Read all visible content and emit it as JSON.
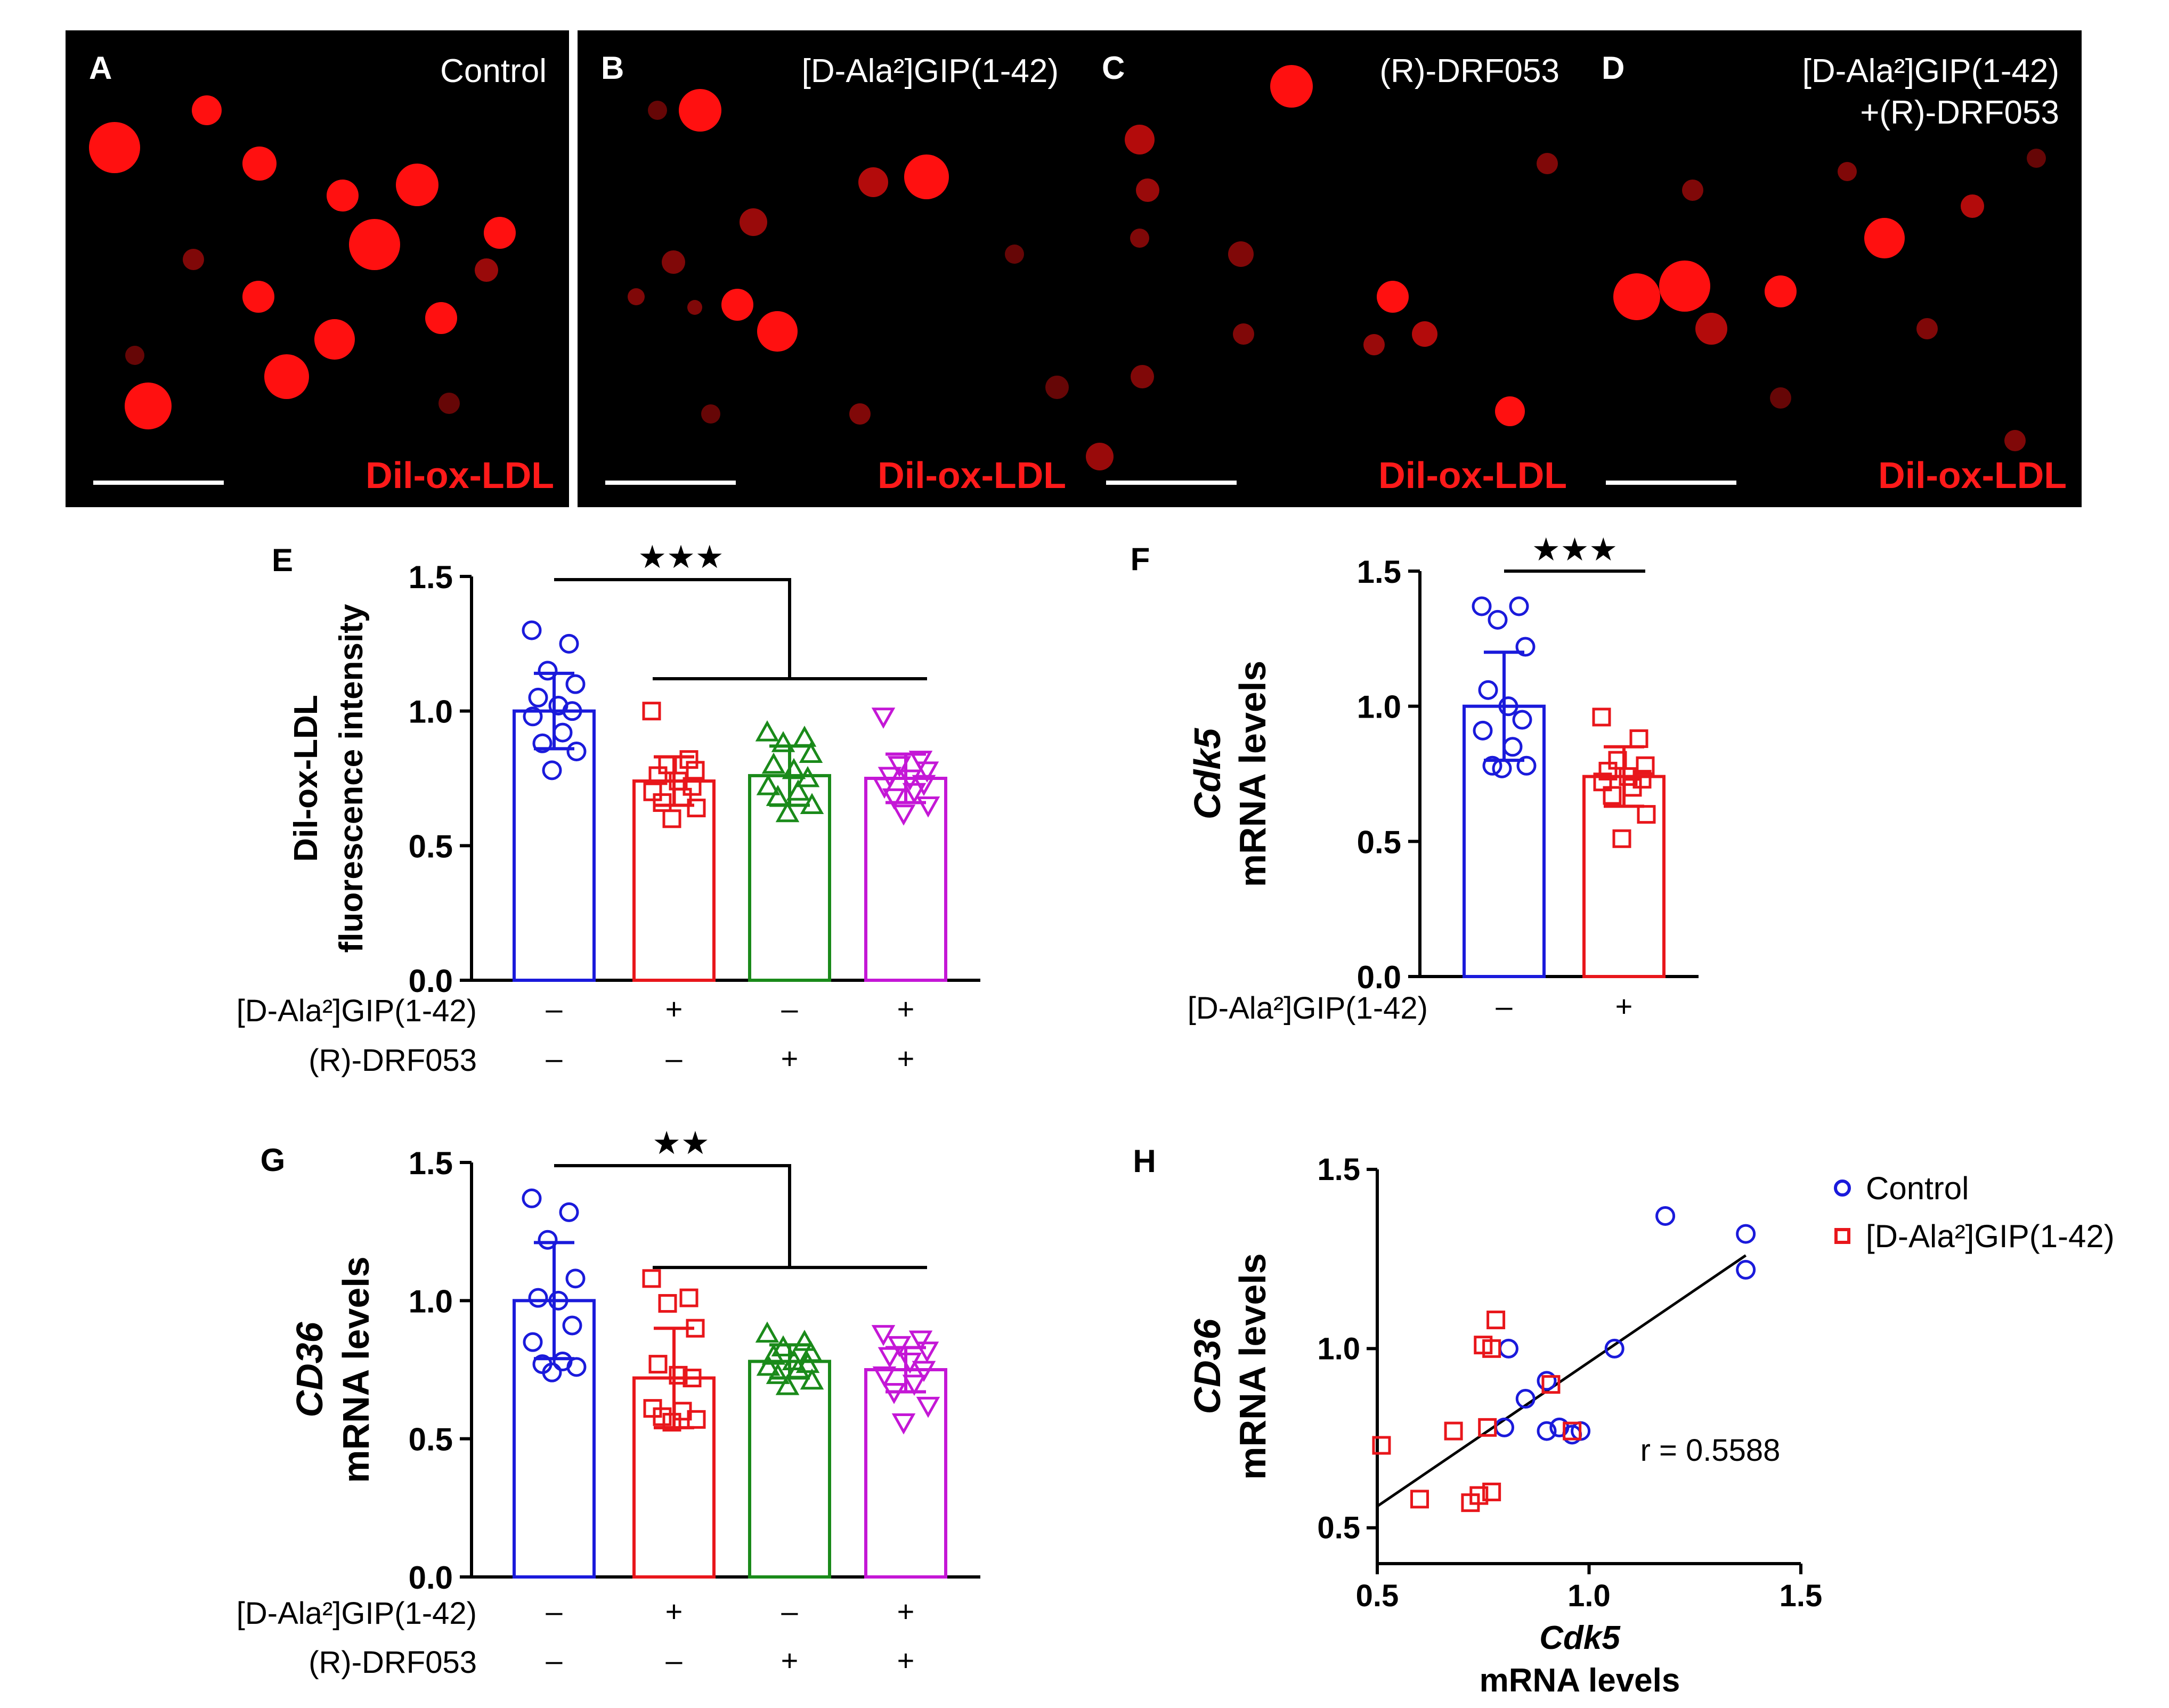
{
  "colors": {
    "control": "#1a1adb",
    "gip": "#e8161b",
    "drf": "#1a8a1a",
    "combo": "#c417d6",
    "stain": "#ff1a1a",
    "axis": "#000000"
  },
  "micrographs": [
    {
      "letter": "A",
      "title": "Control",
      "stain": "Dil-ox-LDL"
    },
    {
      "letter": "B",
      "title": "[D-Ala²]GIP(1-42)",
      "stain": "Dil-ox-LDL"
    },
    {
      "letter": "C",
      "title": "(R)-DRF053",
      "stain": "Dil-ox-LDL"
    },
    {
      "letter": "D",
      "title": "[D-Ala²]GIP(1-42)",
      "title2": "+(R)-DRF053",
      "stain": "Dil-ox-LDL"
    }
  ],
  "condition_labels": {
    "gip": "[D-Ala²]GIP(1-42)",
    "drf": "(R)-DRF053"
  },
  "chart_data": [
    {
      "id": "E",
      "type": "bar",
      "panel_letter": "E",
      "ylabel_lines": [
        "Dil-ox-LDL",
        "fluorescence intensity"
      ],
      "ylim": [
        0,
        1.5
      ],
      "yticks": [
        "0.0",
        "0.5",
        "1.0",
        "1.5"
      ],
      "significance": "★★★",
      "categories": [
        "Control",
        "[D-Ala²]GIP(1-42)",
        "(R)-DRF053",
        "[D-Ala²]GIP(1-42)+(R)-DRF053"
      ],
      "condition_rows": [
        {
          "label": "[D-Ala²]GIP(1-42)",
          "signs": [
            "–",
            "+",
            "–",
            "+"
          ]
        },
        {
          "label": "(R)-DRF053",
          "signs": [
            "–",
            "–",
            "+",
            "+"
          ]
        }
      ],
      "series": [
        {
          "name": "Control",
          "marker": "circle",
          "mean": 1.0,
          "sd": 0.14,
          "points": [
            1.3,
            1.25,
            1.15,
            1.1,
            1.05,
            1.02,
            1.0,
            0.98,
            0.92,
            0.88,
            0.85,
            0.78
          ]
        },
        {
          "name": "[D-Ala²]GIP(1-42)",
          "marker": "square",
          "mean": 0.74,
          "sd": 0.09,
          "points": [
            1.0,
            0.82,
            0.8,
            0.78,
            0.76,
            0.74,
            0.72,
            0.7,
            0.68,
            0.66,
            0.64,
            0.6
          ]
        },
        {
          "name": "(R)-DRF053",
          "marker": "triangle-up",
          "mean": 0.76,
          "sd": 0.11,
          "points": [
            0.92,
            0.9,
            0.88,
            0.84,
            0.8,
            0.78,
            0.75,
            0.72,
            0.7,
            0.68,
            0.65,
            0.62
          ]
        },
        {
          "name": "[D-Ala²]GIP(1-42)+(R)-DRF053",
          "marker": "triangle-down",
          "mean": 0.75,
          "sd": 0.09,
          "points": [
            0.98,
            0.82,
            0.8,
            0.78,
            0.76,
            0.75,
            0.73,
            0.72,
            0.7,
            0.68,
            0.65,
            0.62
          ]
        }
      ]
    },
    {
      "id": "F",
      "type": "bar",
      "panel_letter": "F",
      "ylabel_italic": "Cdk5",
      "ylabel_rest": "mRNA levels",
      "ylim": [
        0,
        1.5
      ],
      "yticks": [
        "0.0",
        "0.5",
        "1.0",
        "1.5"
      ],
      "significance": "★★★",
      "categories": [
        "Control",
        "[D-Ala²]GIP(1-42)"
      ],
      "condition_rows": [
        {
          "label": "[D-Ala²]GIP(1-42)",
          "signs": [
            "–",
            "+"
          ]
        }
      ],
      "series": [
        {
          "name": "Control",
          "marker": "circle",
          "mean": 1.0,
          "sd": 0.2,
          "points": [
            1.37,
            1.37,
            1.32,
            1.22,
            1.06,
            1.0,
            0.95,
            0.91,
            0.85,
            0.78,
            0.78,
            0.77
          ]
        },
        {
          "name": "[D-Ala²]GIP(1-42)",
          "marker": "square",
          "mean": 0.74,
          "sd": 0.11,
          "points": [
            0.96,
            0.88,
            0.8,
            0.78,
            0.76,
            0.74,
            0.73,
            0.72,
            0.7,
            0.67,
            0.6,
            0.51
          ]
        }
      ]
    },
    {
      "id": "G",
      "type": "bar",
      "panel_letter": "G",
      "ylabel_italic": "CD36",
      "ylabel_rest": "mRNA levels",
      "ylim": [
        0,
        1.5
      ],
      "yticks": [
        "0.0",
        "0.5",
        "1.0",
        "1.5"
      ],
      "significance": "★★",
      "categories": [
        "Control",
        "[D-Ala²]GIP(1-42)",
        "(R)-DRF053",
        "[D-Ala²]GIP(1-42)+(R)-DRF053"
      ],
      "condition_rows": [
        {
          "label": "[D-Ala²]GIP(1-42)",
          "signs": [
            "–",
            "+",
            "–",
            "+"
          ]
        },
        {
          "label": "(R)-DRF053",
          "signs": [
            "–",
            "–",
            "+",
            "+"
          ]
        }
      ],
      "series": [
        {
          "name": "Control",
          "marker": "circle",
          "mean": 1.0,
          "sd": 0.21,
          "points": [
            1.37,
            1.32,
            1.22,
            1.08,
            1.01,
            1.0,
            0.91,
            0.85,
            0.78,
            0.77,
            0.76,
            0.74
          ]
        },
        {
          "name": "[D-Ala²]GIP(1-42)",
          "marker": "square",
          "mean": 0.72,
          "sd": 0.18,
          "points": [
            1.08,
            1.01,
            0.99,
            0.9,
            0.77,
            0.73,
            0.72,
            0.61,
            0.6,
            0.58,
            0.57,
            0.56
          ]
        },
        {
          "name": "(R)-DRF053",
          "marker": "triangle-up",
          "mean": 0.78,
          "sd": 0.06,
          "points": [
            0.88,
            0.85,
            0.83,
            0.81,
            0.8,
            0.78,
            0.77,
            0.76,
            0.75,
            0.73,
            0.71,
            0.69
          ]
        },
        {
          "name": "[D-Ala²]GIP(1-42)+(R)-DRF053",
          "marker": "triangle-down",
          "mean": 0.75,
          "sd": 0.08,
          "points": [
            0.88,
            0.86,
            0.84,
            0.82,
            0.8,
            0.78,
            0.75,
            0.73,
            0.7,
            0.67,
            0.62,
            0.56
          ]
        }
      ]
    },
    {
      "id": "H",
      "type": "scatter",
      "panel_letter": "H",
      "xlabel_italic": "Cdk5",
      "xlabel_rest": "mRNA levels",
      "ylabel_italic": "CD36",
      "ylabel_rest": "mRNA levels",
      "xlim": [
        0.5,
        1.5
      ],
      "ylim": [
        0.4,
        1.5
      ],
      "xticks": [
        0.5,
        1.0,
        1.5
      ],
      "yticks": [
        0.5,
        1.0,
        1.5
      ],
      "xtick_labels": [
        "0.5",
        "1.0",
        "1.5"
      ],
      "ytick_labels": [
        "0.5",
        "1.0",
        "1.5"
      ],
      "annotation": "r = 0.5588",
      "fit_line": {
        "x": [
          0.5,
          1.37
        ],
        "y": [
          0.56,
          1.26
        ]
      },
      "series": [
        {
          "name": "Control",
          "marker": "circle",
          "x": [
            1.18,
            1.37,
            1.37,
            1.06,
            0.81,
            0.85,
            0.9,
            0.8,
            0.9,
            0.93,
            0.96,
            0.98
          ],
          "y": [
            1.37,
            1.32,
            1.22,
            1.0,
            1.0,
            0.86,
            0.91,
            0.78,
            0.77,
            0.78,
            0.76,
            0.77
          ]
        },
        {
          "name": "[D-Ala²]GIP(1-42)",
          "marker": "square",
          "x": [
            0.78,
            0.75,
            0.77,
            0.91,
            0.51,
            0.68,
            0.76,
            0.96,
            0.6,
            0.72,
            0.74,
            0.77
          ],
          "y": [
            1.08,
            1.01,
            1.0,
            0.9,
            0.73,
            0.77,
            0.78,
            0.77,
            0.58,
            0.57,
            0.59,
            0.6
          ]
        }
      ]
    }
  ],
  "legend": [
    {
      "label": "Control",
      "marker": "circle"
    },
    {
      "label": "[D-Ala²]GIP(1-42)",
      "marker": "square"
    }
  ]
}
